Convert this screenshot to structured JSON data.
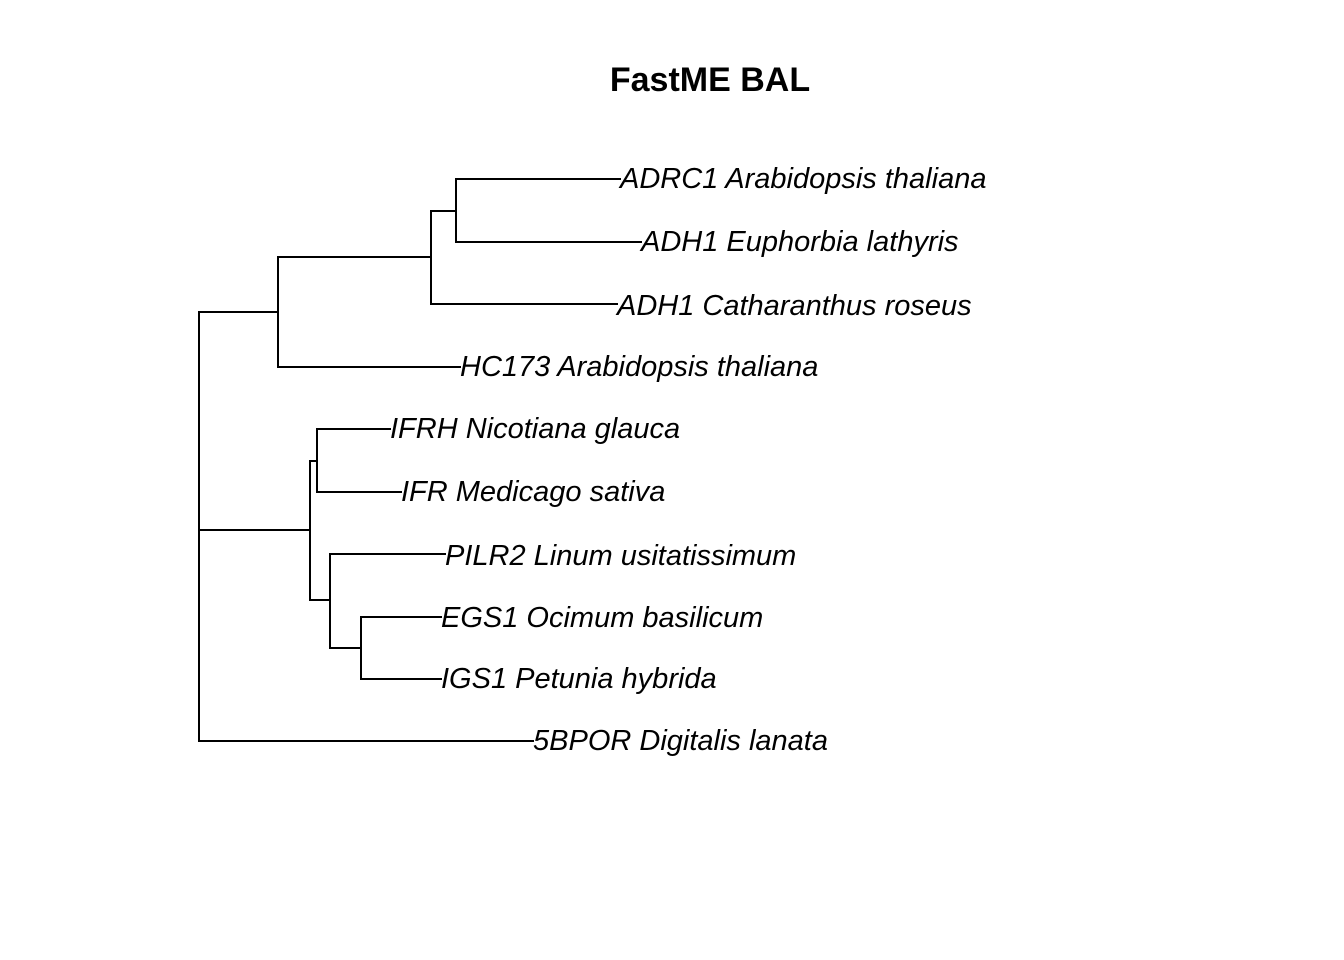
{
  "title": "FastME BAL",
  "tree": {
    "tips": [
      "ADRC1 Arabidopsis thaliana",
      "ADH1 Euphorbia lathyris",
      "ADH1 Catharanthus roseus",
      "HC173 Arabidopsis thaliana",
      "IFRH Nicotiana glauca",
      "IFR Medicago sativa",
      "PILR2 Linum usitatissimum",
      "EGS1 Ocimum basilicum",
      "IGS1 Petunia hybrida",
      "5BPOR Digitalis lanata"
    ],
    "topology": "((((ADRC1 Arabidopsis thaliana,ADH1 Euphorbia lathyris),ADH1 Catharanthus roseus),HC173 Arabidopsis thaliana),((IFRH Nicotiana glauca,IFR Medicago sativa),(PILR2 Linum usitatissimum,(EGS1 Ocimum basilicum,IGS1 Petunia hybrida))),5BPOR Digitalis lanata)",
    "colors": {
      "branch": "#000000",
      "label": "#000000",
      "background": "#ffffff"
    }
  }
}
